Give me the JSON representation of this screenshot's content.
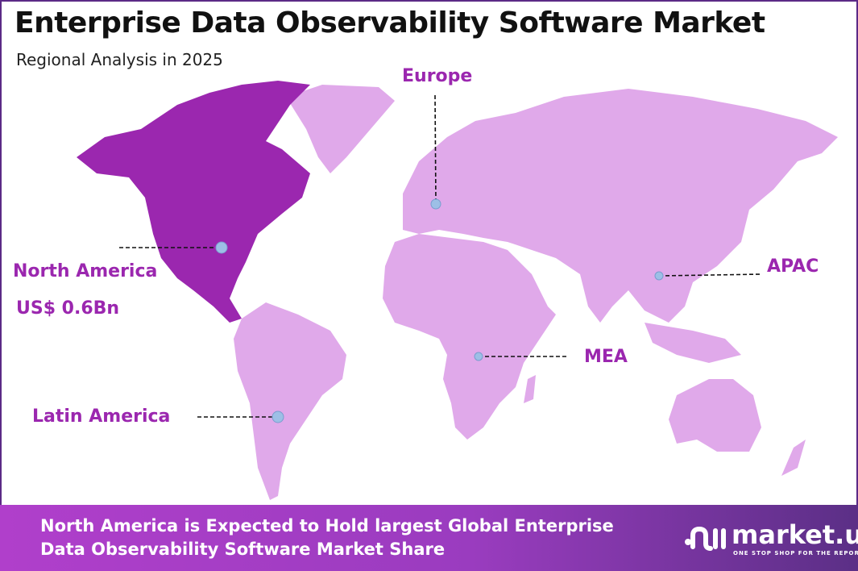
{
  "header": {
    "title": "Enterprise Data Observability Software Market",
    "subtitle": "Regional Analysis in 2025"
  },
  "map": {
    "highlight_color": "#9b27af",
    "base_color": "#e0a9ea",
    "marker_color": "#9dbfe6",
    "regions": [
      {
        "name": "North America",
        "value": "US$ 0.6Bn",
        "highlighted": true
      },
      {
        "name": "Europe",
        "highlighted": false
      },
      {
        "name": "APAC",
        "highlighted": false
      },
      {
        "name": "MEA",
        "highlighted": false
      },
      {
        "name": "Latin America",
        "highlighted": false
      }
    ]
  },
  "footer": {
    "line1": "North America is Expected to Hold largest Global Enterprise",
    "line2": "Data Observability Software Market Share",
    "logo": {
      "name": "market.us",
      "tagline": "ONE STOP SHOP FOR THE REPORTS"
    }
  }
}
